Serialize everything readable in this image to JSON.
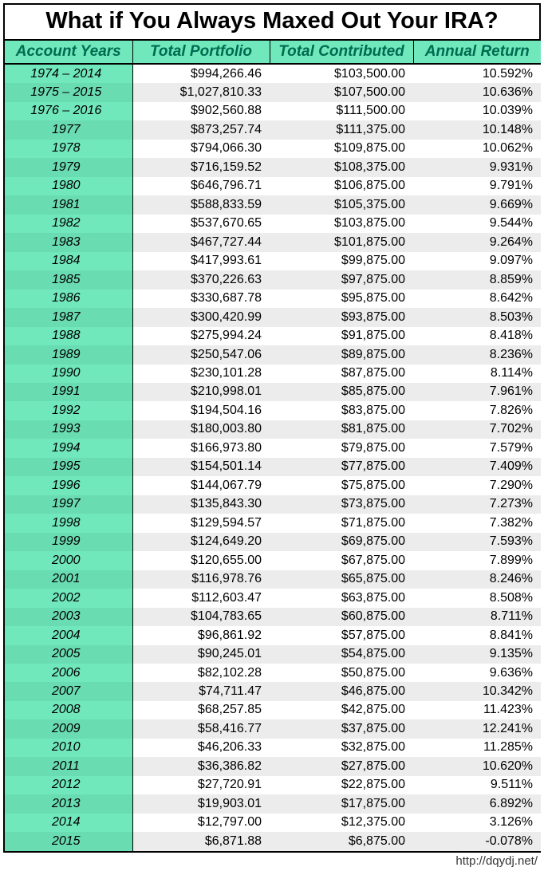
{
  "title": "What if You Always Maxed Out Your IRA?",
  "columns": [
    "Account Years",
    "Total Portfolio",
    "Total Contributed",
    "Annual Return"
  ],
  "footer": "http://dqydj.net/",
  "rows": [
    {
      "year": "1974 – 2014",
      "portfolio": "$994,266.46",
      "contributed": "$103,500.00",
      "return": "10.592%"
    },
    {
      "year": "1975 – 2015",
      "portfolio": "$1,027,810.33",
      "contributed": "$107,500.00",
      "return": "10.636%"
    },
    {
      "year": "1976 – 2016",
      "portfolio": "$902,560.88",
      "contributed": "$111,500.00",
      "return": "10.039%"
    },
    {
      "year": "1977",
      "portfolio": "$873,257.74",
      "contributed": "$111,375.00",
      "return": "10.148%"
    },
    {
      "year": "1978",
      "portfolio": "$794,066.30",
      "contributed": "$109,875.00",
      "return": "10.062%"
    },
    {
      "year": "1979",
      "portfolio": "$716,159.52",
      "contributed": "$108,375.00",
      "return": "9.931%"
    },
    {
      "year": "1980",
      "portfolio": "$646,796.71",
      "contributed": "$106,875.00",
      "return": "9.791%"
    },
    {
      "year": "1981",
      "portfolio": "$588,833.59",
      "contributed": "$105,375.00",
      "return": "9.669%"
    },
    {
      "year": "1982",
      "portfolio": "$537,670.65",
      "contributed": "$103,875.00",
      "return": "9.544%"
    },
    {
      "year": "1983",
      "portfolio": "$467,727.44",
      "contributed": "$101,875.00",
      "return": "9.264%"
    },
    {
      "year": "1984",
      "portfolio": "$417,993.61",
      "contributed": "$99,875.00",
      "return": "9.097%"
    },
    {
      "year": "1985",
      "portfolio": "$370,226.63",
      "contributed": "$97,875.00",
      "return": "8.859%"
    },
    {
      "year": "1986",
      "portfolio": "$330,687.78",
      "contributed": "$95,875.00",
      "return": "8.642%"
    },
    {
      "year": "1987",
      "portfolio": "$300,420.99",
      "contributed": "$93,875.00",
      "return": "8.503%"
    },
    {
      "year": "1988",
      "portfolio": "$275,994.24",
      "contributed": "$91,875.00",
      "return": "8.418%"
    },
    {
      "year": "1989",
      "portfolio": "$250,547.06",
      "contributed": "$89,875.00",
      "return": "8.236%"
    },
    {
      "year": "1990",
      "portfolio": "$230,101.28",
      "contributed": "$87,875.00",
      "return": "8.114%"
    },
    {
      "year": "1991",
      "portfolio": "$210,998.01",
      "contributed": "$85,875.00",
      "return": "7.961%"
    },
    {
      "year": "1992",
      "portfolio": "$194,504.16",
      "contributed": "$83,875.00",
      "return": "7.826%"
    },
    {
      "year": "1993",
      "portfolio": "$180,003.80",
      "contributed": "$81,875.00",
      "return": "7.702%"
    },
    {
      "year": "1994",
      "portfolio": "$166,973.80",
      "contributed": "$79,875.00",
      "return": "7.579%"
    },
    {
      "year": "1995",
      "portfolio": "$154,501.14",
      "contributed": "$77,875.00",
      "return": "7.409%"
    },
    {
      "year": "1996",
      "portfolio": "$144,067.79",
      "contributed": "$75,875.00",
      "return": "7.290%"
    },
    {
      "year": "1997",
      "portfolio": "$135,843.30",
      "contributed": "$73,875.00",
      "return": "7.273%"
    },
    {
      "year": "1998",
      "portfolio": "$129,594.57",
      "contributed": "$71,875.00",
      "return": "7.382%"
    },
    {
      "year": "1999",
      "portfolio": "$124,649.20",
      "contributed": "$69,875.00",
      "return": "7.593%"
    },
    {
      "year": "2000",
      "portfolio": "$120,655.00",
      "contributed": "$67,875.00",
      "return": "7.899%"
    },
    {
      "year": "2001",
      "portfolio": "$116,978.76",
      "contributed": "$65,875.00",
      "return": "8.246%"
    },
    {
      "year": "2002",
      "portfolio": "$112,603.47",
      "contributed": "$63,875.00",
      "return": "8.508%"
    },
    {
      "year": "2003",
      "portfolio": "$104,783.65",
      "contributed": "$60,875.00",
      "return": "8.711%"
    },
    {
      "year": "2004",
      "portfolio": "$96,861.92",
      "contributed": "$57,875.00",
      "return": "8.841%"
    },
    {
      "year": "2005",
      "portfolio": "$90,245.01",
      "contributed": "$54,875.00",
      "return": "9.135%"
    },
    {
      "year": "2006",
      "portfolio": "$82,102.28",
      "contributed": "$50,875.00",
      "return": "9.636%"
    },
    {
      "year": "2007",
      "portfolio": "$74,711.47",
      "contributed": "$46,875.00",
      "return": "10.342%"
    },
    {
      "year": "2008",
      "portfolio": "$68,257.85",
      "contributed": "$42,875.00",
      "return": "11.423%"
    },
    {
      "year": "2009",
      "portfolio": "$58,416.77",
      "contributed": "$37,875.00",
      "return": "12.241%"
    },
    {
      "year": "2010",
      "portfolio": "$46,206.33",
      "contributed": "$32,875.00",
      "return": "11.285%"
    },
    {
      "year": "2011",
      "portfolio": "$36,386.82",
      "contributed": "$27,875.00",
      "return": "10.620%"
    },
    {
      "year": "2012",
      "portfolio": "$27,720.91",
      "contributed": "$22,875.00",
      "return": "9.511%"
    },
    {
      "year": "2013",
      "portfolio": "$19,903.01",
      "contributed": "$17,875.00",
      "return": "6.892%"
    },
    {
      "year": "2014",
      "portfolio": "$12,797.00",
      "contributed": "$12,375.00",
      "return": "3.126%"
    },
    {
      "year": "2015",
      "portfolio": "$6,871.88",
      "contributed": "$6,875.00",
      "return": "-0.078%"
    }
  ]
}
